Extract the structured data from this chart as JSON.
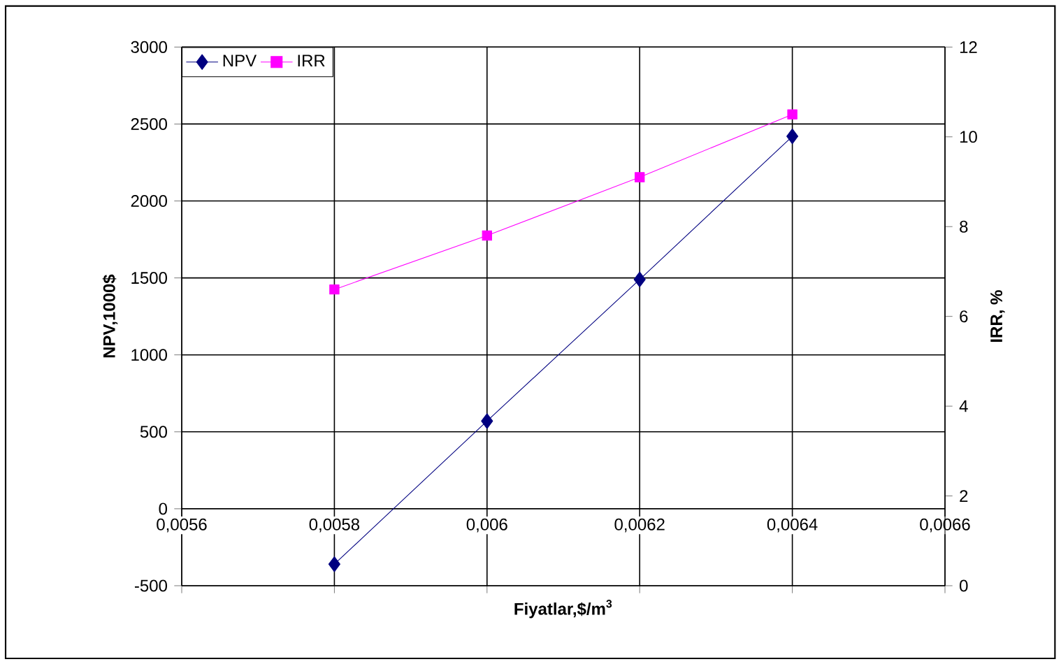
{
  "chart_data": {
    "type": "line",
    "xlabel": "Fiyatlar,$/m$^{3}$",
    "ylabel": "NPV,1000$",
    "y2label": "IRR, %",
    "x": [
      0.0058,
      0.006,
      0.0062,
      0.0064
    ],
    "series": [
      {
        "name": "NPV",
        "color": "#000080",
        "marker": "diamond",
        "values": [
          -360,
          570,
          1490,
          2420
        ]
      },
      {
        "name": "IRR",
        "color": "#ff00ff",
        "marker": "square",
        "axis": "y2",
        "values": [
          6.6,
          7.8,
          9.1,
          10.5
        ]
      }
    ],
    "xlim": [
      0.0056,
      0.0066
    ],
    "xticks": [
      {
        "value": 0.0056,
        "label": "0,0056"
      },
      {
        "value": 0.0058,
        "label": "0,0058"
      },
      {
        "value": 0.006,
        "label": "0,006"
      },
      {
        "value": 0.0062,
        "label": "0,0062"
      },
      {
        "value": 0.0064,
        "label": "0,0064"
      },
      {
        "value": 0.0066,
        "label": "0,0066"
      }
    ],
    "ylim": [
      -500,
      3000
    ],
    "yticks": [
      -500,
      0,
      500,
      1000,
      1500,
      2000,
      2500,
      3000
    ],
    "y2lim": [
      0,
      12
    ],
    "y2ticks": [
      0,
      2,
      4,
      6,
      8,
      10,
      12
    ],
    "grid": true,
    "legend": "top left",
    "line_style": "solid"
  }
}
